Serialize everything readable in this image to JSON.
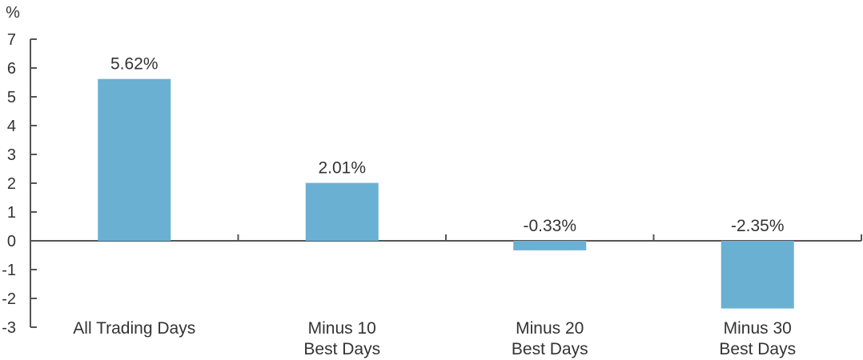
{
  "chart_data": {
    "type": "bar",
    "unit_label": "%",
    "categories": [
      [
        "All Trading Days"
      ],
      [
        "Minus 10",
        "Best Days"
      ],
      [
        "Minus 20",
        "Best Days"
      ],
      [
        "Minus 30",
        "Best Days"
      ]
    ],
    "values": [
      5.62,
      2.01,
      -0.33,
      -2.35
    ],
    "data_labels": [
      "5.62%",
      "2.01%",
      "-0.33%",
      "-2.35%"
    ],
    "ylim": [
      -3,
      7
    ],
    "yticks": [
      "-3",
      "-2",
      "-1",
      "0",
      "1",
      "2",
      "3",
      "4",
      "5",
      "6",
      "7"
    ],
    "grid": false,
    "legend": "none",
    "bar_color": "#6ab0d2",
    "axis_color": "#555555"
  }
}
